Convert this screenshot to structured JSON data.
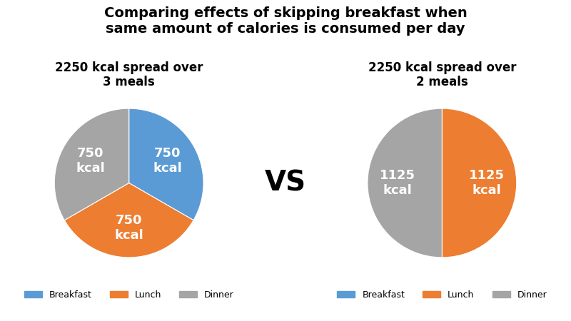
{
  "title": "Comparing effects of skipping breakfast when\nsame amount of calories is consumed per day",
  "annotations": [
    "VS"
  ],
  "series": [
    {
      "name": "Breakfast",
      "color": "#5B9BD5"
    },
    {
      "name": "Lunch",
      "color": "#ED7D31"
    },
    {
      "name": "Dinner",
      "color": "#A5A5A5"
    }
  ],
  "legend": "lower center",
  "chart_data": [
    {
      "type": "pie",
      "title": "2250 kcal spread over\n3 meals",
      "categories": [
        "Breakfast",
        "Lunch",
        "Dinner"
      ],
      "values": [
        750,
        750,
        750
      ],
      "colors": [
        "#5B9BD5",
        "#ED7D31",
        "#A5A5A5"
      ],
      "data_labels": true,
      "value_labels": [
        "750\nkcal",
        "750\nkcal",
        "750\nkcal"
      ]
    },
    {
      "type": "pie",
      "title": "2250 kcal spread over\n2 meals",
      "categories": [
        "Lunch",
        "Dinner"
      ],
      "values": [
        1125,
        1125
      ],
      "colors": [
        "#ED7D31",
        "#A5A5A5"
      ],
      "data_labels": true,
      "value_labels": [
        "1125\nkcal",
        "1125\nkcal"
      ]
    }
  ]
}
